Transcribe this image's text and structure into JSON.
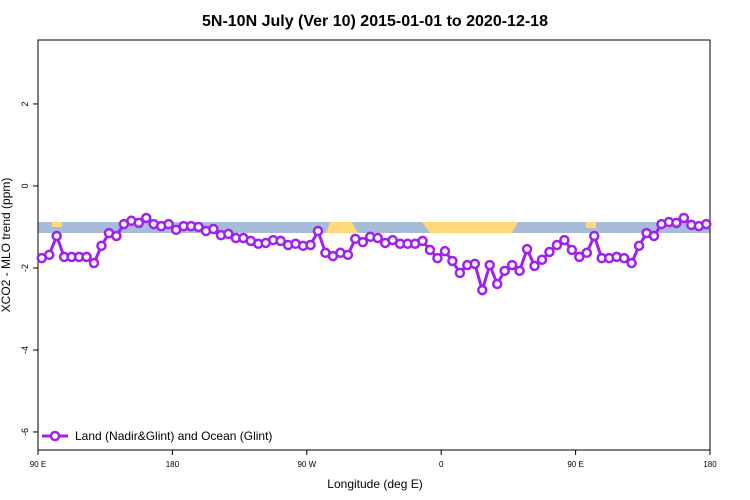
{
  "chart_data": {
    "type": "line",
    "title": "5N-10N July (Ver 10)   2015-01-01 to 2020-12-18",
    "x_label": "Longitude (deg E)",
    "y_label": "XCO2 - MLO trend (ppm)",
    "xlim": [
      90,
      540
    ],
    "ylim": [
      -6.44,
      3.56
    ],
    "xticks": [
      {
        "value": 90,
        "label": "90 E"
      },
      180,
      {
        "value": 270,
        "label": "90 W"
      },
      {
        "value": 360,
        "label": "0"
      },
      {
        "value": 450,
        "label": "90 E"
      },
      {
        "value": 540,
        "label": "180"
      }
    ],
    "yticks": [
      2,
      0,
      -2,
      -4,
      -6
    ],
    "legend": "bottom-left",
    "x": [
      92.5,
      97.5,
      102.5,
      107.5,
      112.5,
      117.5,
      122.5,
      127.5,
      132.5,
      137.5,
      142.5,
      147.5,
      152.5,
      157.5,
      162.5,
      167.5,
      172.5,
      177.5,
      182.5,
      187.5,
      192.5,
      197.5,
      202.5,
      207.5,
      212.5,
      217.5,
      222.5,
      227.5,
      232.5,
      237.5,
      242.5,
      247.5,
      252.5,
      257.5,
      262.5,
      267.5,
      272.5,
      277.5,
      282.5,
      287.5,
      292.5,
      297.5,
      302.5,
      307.5,
      312.5,
      317.5,
      322.5,
      327.5,
      332.5,
      337.5,
      342.5,
      347.5,
      352.5,
      357.5,
      362.5,
      367.5,
      372.5,
      377.5,
      382.5,
      387.5,
      392.5,
      397.5,
      402.5,
      407.5,
      412.5,
      417.5,
      422.5,
      427.5,
      432.5,
      437.5,
      442.5,
      447.5,
      452.5,
      457.5,
      462.5,
      467.5,
      472.5,
      477.5,
      482.5,
      487.5,
      492.5,
      497.5,
      502.5,
      507.5,
      512.5,
      517.5,
      522.5,
      527.5,
      532.5,
      537.5
    ],
    "series": [
      {
        "name": "Land (Nadir&Glint) and Ocean (Glint)",
        "color": "#a020f0",
        "values": [
          -1.76,
          -1.68,
          -1.22,
          -1.73,
          -1.73,
          -1.73,
          -1.73,
          -1.88,
          -1.46,
          -1.15,
          -1.22,
          -0.93,
          -0.85,
          -0.9,
          -0.78,
          -0.93,
          -0.98,
          -0.93,
          -1.07,
          -0.98,
          -0.98,
          -1.0,
          -1.1,
          -1.05,
          -1.2,
          -1.17,
          -1.27,
          -1.27,
          -1.34,
          -1.41,
          -1.39,
          -1.32,
          -1.34,
          -1.44,
          -1.41,
          -1.46,
          -1.44,
          -1.1,
          -1.63,
          -1.71,
          -1.63,
          -1.68,
          -1.29,
          -1.37,
          -1.24,
          -1.27,
          -1.39,
          -1.32,
          -1.41,
          -1.41,
          -1.41,
          -1.34,
          -1.56,
          -1.76,
          -1.59,
          -1.83,
          -2.12,
          -1.93,
          -1.9,
          -2.54,
          -1.93,
          -2.39,
          -2.07,
          -1.93,
          -2.07,
          -1.54,
          -1.95,
          -1.8,
          -1.61,
          -1.44,
          -1.32,
          -1.56,
          -1.73,
          -1.63,
          -1.22,
          -1.76,
          -1.76,
          -1.73,
          -1.76,
          -1.88,
          -1.46,
          -1.15,
          -1.22,
          -0.93,
          -0.88,
          -0.9,
          -0.78,
          -0.95,
          -0.98,
          -0.93
        ]
      }
    ]
  }
}
